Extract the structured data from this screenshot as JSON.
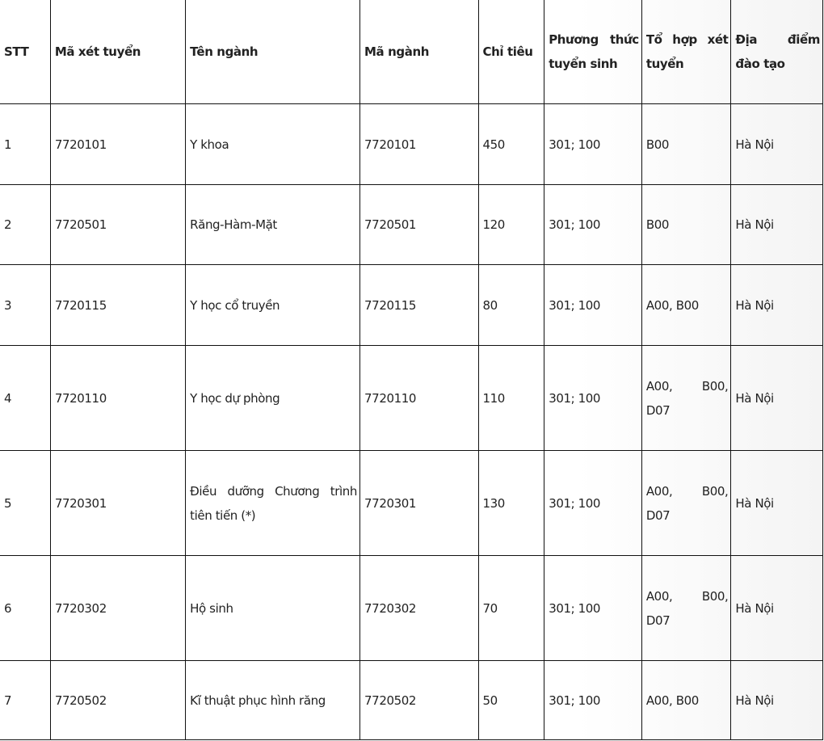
{
  "headers": [
    "STT",
    "Mã xét tuyển",
    "Tên ngành",
    "Mã ngành",
    "Chỉ tiêu",
    "Phương thức tuyển sinh",
    "Tổ hợp xét tuyển",
    "Địa điểm đào tạo"
  ],
  "rows": [
    [
      "1",
      "7720101",
      "Y khoa",
      "7720101",
      "450",
      "301; 100",
      "B00",
      "Hà Nội"
    ],
    [
      "2",
      "7720501",
      "Răng-Hàm-Mặt",
      "7720501",
      "120",
      "301; 100",
      "B00",
      "Hà Nội"
    ],
    [
      "3",
      "7720115",
      "Y học cổ truyền",
      "7720115",
      "80",
      "301; 100",
      "A00, B00",
      "Hà Nội"
    ],
    [
      "4",
      "7720110",
      "Y học dự phòng",
      "7720110",
      "110",
      "301; 100",
      "A00, B00, D07",
      "Hà Nội"
    ],
    [
      "5",
      "7720301",
      "Điều dưỡng Chương trình tiên tiến (*)",
      "7720301",
      "130",
      "301; 100",
      "A00, B00, D07",
      "Hà Nội"
    ],
    [
      "6",
      "7720302",
      "Hộ sinh",
      "7720302",
      "70",
      "301; 100",
      "A00, B00, D07",
      "Hà Nội"
    ],
    [
      "7",
      "7720502",
      "Kĩ thuật phục hình răng",
      "7720502",
      "50",
      "301; 100",
      "A00, B00",
      "Hà Nội"
    ]
  ]
}
